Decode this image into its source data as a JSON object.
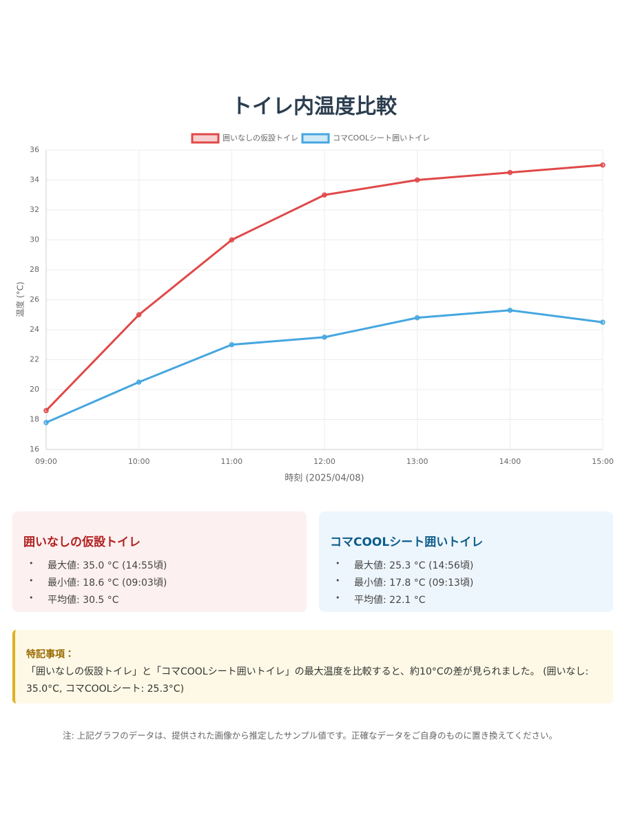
{
  "chart_data": {
    "type": "line",
    "title": "トイレ内温度比較",
    "x_label": "時刻 (2025/04/08)",
    "y_label": "温度 (°C)",
    "categories": [
      "09:00",
      "10:00",
      "11:00",
      "12:00",
      "13:00",
      "14:00",
      "15:00"
    ],
    "series": [
      {
        "name": "囲いなしの仮設トイレ",
        "color": "#e04848",
        "values": [
          18.6,
          25,
          30,
          33,
          34,
          34.5,
          35
        ]
      },
      {
        "name": "コマCOOLシート囲いトイレ",
        "color": "#45a6e0",
        "values": [
          17.8,
          20.5,
          23,
          23.5,
          24.8,
          25.3,
          24.5
        ]
      }
    ],
    "ylim": [
      16,
      36
    ],
    "yticks": [
      16,
      18,
      20,
      22,
      24,
      26,
      28,
      30,
      32,
      34,
      36
    ],
    "grid": true,
    "legend": "top"
  },
  "cards": [
    {
      "title": "囲いなしの仮設トイレ",
      "items": [
        "最大値: 35.0 °C (14:55頃)",
        "最小値: 18.6 °C (09:03頃)",
        "平均値: 30.5 °C"
      ]
    },
    {
      "title": "コマCOOLシート囲いトイレ",
      "items": [
        "最大値: 25.3 °C (14:56頃)",
        "最小値: 17.8 °C (09:13頃)",
        "平均値: 22.1 °C"
      ]
    }
  ],
  "note": {
    "title": "特記事項：",
    "text": "「囲いなしの仮設トイレ」と「コマCOOLシート囲いトイレ」の最大温度を比較すると、約10°Cの差が見られました。 (囲いなし: 35.0°C, コマCOOLシート: 25.3°C)"
  },
  "footnote": "注: 上記グラフのデータは、提供された画像から推定したサンプル値です。正確なデータをご自身のものに置き換えてください。"
}
